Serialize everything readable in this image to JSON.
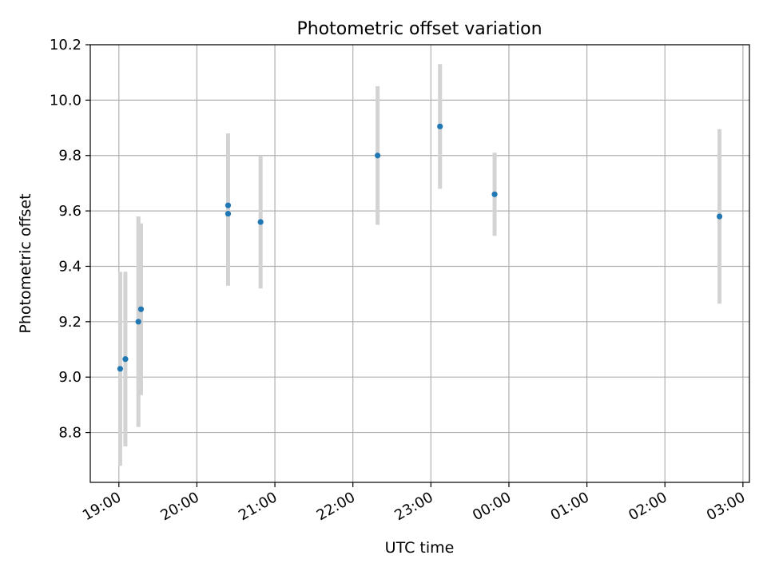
{
  "chart_data": {
    "type": "scatter",
    "title": "Photometric offset variation",
    "xlabel": "UTC time",
    "ylabel": "Photometric offset",
    "x_type": "time",
    "xlim": [
      "18:38",
      "03:05"
    ],
    "ylim": [
      8.62,
      10.2
    ],
    "x_ticks": [
      "19:00",
      "20:00",
      "21:00",
      "22:00",
      "23:00",
      "00:00",
      "01:00",
      "02:00",
      "03:00"
    ],
    "y_ticks": [
      8.8,
      9.0,
      9.2,
      9.4,
      9.6,
      9.8,
      10.0,
      10.2
    ],
    "y_tick_labels": [
      "8.8",
      "9.0",
      "9.2",
      "9.4",
      "9.6",
      "9.8",
      "10.0",
      "10.2"
    ],
    "grid": true,
    "legend": "none",
    "colors": {
      "point": "#1f77b4",
      "errorbar": "#d3d3d3",
      "grid": "#b0b0b0"
    },
    "points": [
      {
        "x": "19:01",
        "y": 9.03,
        "y_err": 0.35
      },
      {
        "x": "19:05",
        "y": 9.065,
        "y_err": 0.315
      },
      {
        "x": "19:15",
        "y": 9.2,
        "y_err": 0.38
      },
      {
        "x": "19:17",
        "y": 9.245,
        "y_err": 0.31
      },
      {
        "x": "20:24",
        "y": 9.59,
        "y_err": 0.26
      },
      {
        "x": "20:24",
        "y": 9.62,
        "y_err": 0.26
      },
      {
        "x": "20:49",
        "y": 9.56,
        "y_err": 0.24
      },
      {
        "x": "22:19",
        "y": 9.8,
        "y_err": 0.25
      },
      {
        "x": "23:07",
        "y": 9.905,
        "y_err": 0.225
      },
      {
        "x": "23:49",
        "y": 9.66,
        "y_err": 0.15
      },
      {
        "x": "02:42",
        "y": 9.58,
        "y_err": 0.315
      }
    ]
  }
}
